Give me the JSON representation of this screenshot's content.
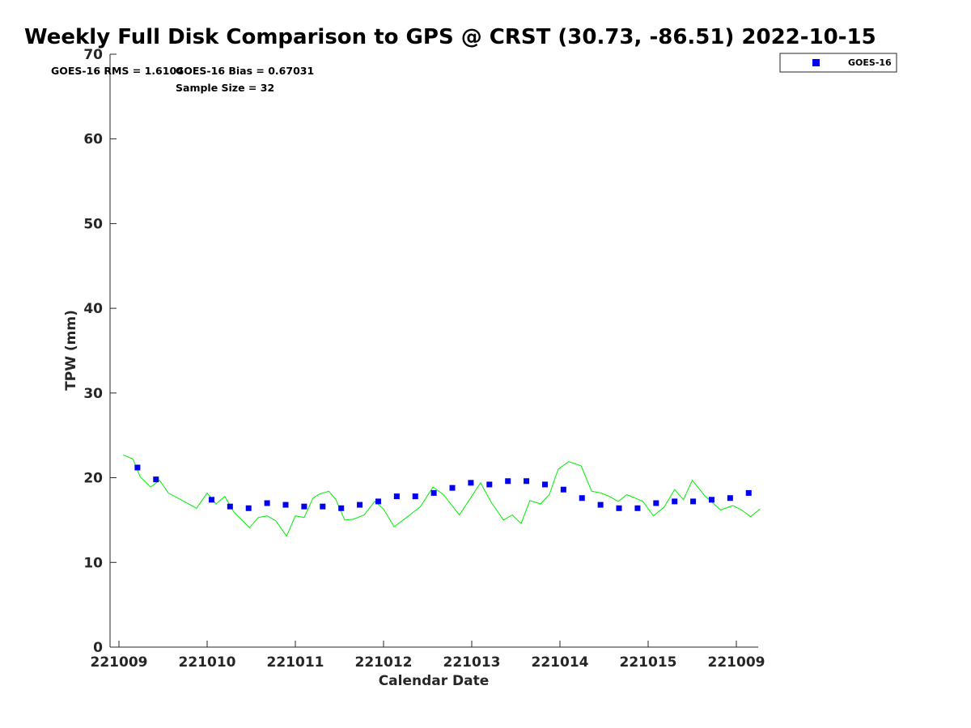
{
  "chart_data": {
    "type": "scatter",
    "title": "Weekly Full Disk Comparison to GPS @ CRST (30.73, -86.51) 2022-10-15",
    "xlabel": "Calendar Date",
    "ylabel": "TPW (mm)",
    "x_tick_labels": [
      "221009",
      "221010",
      "221011",
      "221012",
      "221013",
      "221014",
      "221015",
      "221009"
    ],
    "xlim": [
      0,
      7.27
    ],
    "ylim": [
      0,
      70
    ],
    "y_ticks": [
      "0",
      "10",
      "20",
      "30",
      "40",
      "50",
      "60",
      "70"
    ],
    "grid": false,
    "legend_position": "top-right",
    "annotations": {
      "rms": "GOES-16 RMS = 1.6104",
      "bias": "GOES-16 Bias = 0.67031",
      "sample_size": "Sample Size = 32"
    },
    "colors": {
      "goes16": "#0000ee",
      "gps": "#00ee00",
      "axis": "#262626"
    },
    "series": [
      {
        "name": "GOES-16",
        "kind": "markers",
        "x": [
          0.21,
          0.42,
          1.05,
          1.26,
          1.47,
          1.68,
          1.89,
          2.1,
          2.31,
          2.52,
          2.73,
          2.94,
          3.15,
          3.36,
          3.57,
          3.78,
          3.99,
          4.2,
          4.41,
          4.62,
          4.83,
          5.04,
          5.25,
          5.46,
          5.67,
          5.88,
          6.09,
          6.3,
          6.51,
          6.72,
          6.93,
          7.14
        ],
        "y": [
          21.2,
          19.8,
          17.4,
          16.6,
          16.4,
          17.0,
          16.8,
          16.6,
          16.6,
          16.4,
          16.8,
          17.2,
          17.8,
          17.8,
          18.2,
          18.8,
          19.4,
          19.2,
          19.6,
          19.6,
          19.2,
          18.6,
          17.6,
          16.8,
          16.4,
          16.4,
          17.0,
          17.2,
          17.2,
          17.4,
          17.6,
          18.2
        ]
      },
      {
        "kind": "line",
        "x": [
          0.05,
          0.16,
          0.24,
          0.36,
          0.46,
          0.56,
          0.88,
          1.0,
          1.1,
          1.2,
          1.3,
          1.48,
          1.58,
          1.68,
          1.78,
          1.9,
          2.0,
          2.1,
          2.2,
          2.28,
          2.38,
          2.46,
          2.56,
          2.66,
          2.78,
          2.9,
          3.0,
          3.12,
          3.26,
          3.42,
          3.56,
          3.68,
          3.86,
          3.98,
          4.1,
          4.22,
          4.36,
          4.46,
          4.56,
          4.66,
          4.78,
          4.88,
          4.98,
          5.1,
          5.24,
          5.36,
          5.46,
          5.56,
          5.66,
          5.76,
          5.94,
          6.06,
          6.18,
          6.3,
          6.4,
          6.5,
          6.64,
          6.82,
          6.96,
          7.06,
          7.16,
          7.27
        ],
        "y": [
          22.7,
          22.2,
          20.1,
          18.9,
          19.7,
          18.2,
          16.4,
          18.2,
          16.9,
          17.8,
          16.0,
          14.1,
          15.3,
          15.5,
          14.9,
          13.1,
          15.5,
          15.3,
          17.6,
          18.1,
          18.4,
          17.4,
          15.0,
          15.1,
          15.6,
          17.2,
          16.3,
          14.2,
          15.3,
          16.6,
          18.9,
          18.0,
          15.6,
          17.5,
          19.4,
          17.1,
          15.0,
          15.6,
          14.6,
          17.3,
          16.9,
          18.0,
          21.0,
          21.9,
          21.4,
          18.4,
          18.2,
          17.8,
          17.2,
          18.0,
          17.2,
          15.5,
          16.5,
          18.6,
          17.4,
          19.7,
          17.9,
          16.2,
          16.7,
          16.2,
          15.4,
          16.3
        ]
      }
    ]
  }
}
